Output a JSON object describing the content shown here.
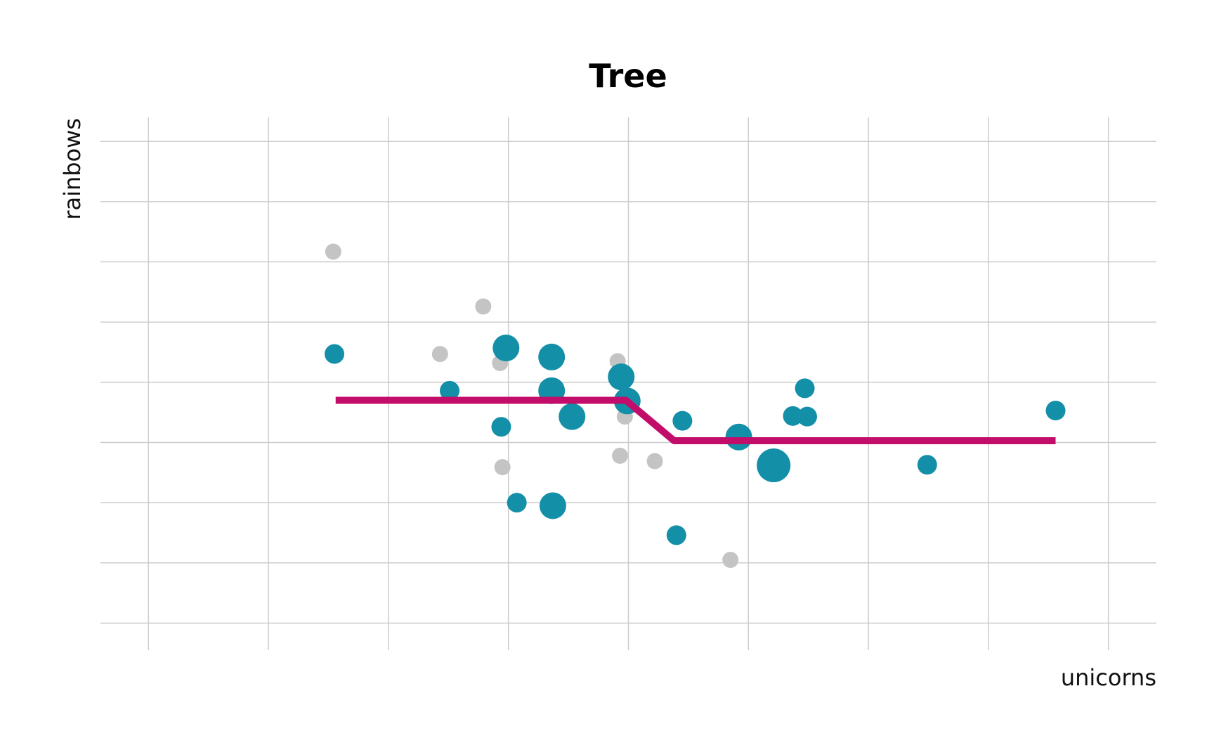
{
  "chart_data": {
    "type": "scatter",
    "title": "Tree",
    "xlabel": "unicorns",
    "ylabel": "rainbows",
    "xlim": [
      -0.4,
      8.4
    ],
    "ylim": [
      -0.45,
      8.4
    ],
    "grid": true,
    "x_gridlines": [
      0,
      1,
      2,
      3,
      4,
      5,
      6,
      7,
      8
    ],
    "y_gridlines": [
      0,
      1,
      2,
      3,
      4,
      5,
      6,
      7,
      8
    ],
    "colors": {
      "test_points": "#c4c4c4",
      "train_points": "#138fa8",
      "model_line": "#c20e6a",
      "grid": "#cccccc"
    },
    "series": [
      {
        "role": "test",
        "points": [
          {
            "x": 1.54,
            "y": 6.17
          },
          {
            "x": 2.79,
            "y": 5.26
          },
          {
            "x": 2.43,
            "y": 4.47
          },
          {
            "x": 2.93,
            "y": 4.32
          },
          {
            "x": 3.91,
            "y": 4.35
          },
          {
            "x": 3.97,
            "y": 3.43
          },
          {
            "x": 2.95,
            "y": 2.59
          },
          {
            "x": 3.93,
            "y": 2.78
          },
          {
            "x": 4.22,
            "y": 2.69
          },
          {
            "x": 4.85,
            "y": 1.05
          }
        ]
      },
      {
        "role": "train",
        "points": [
          {
            "x": 1.55,
            "y": 4.47,
            "w": 1
          },
          {
            "x": 2.51,
            "y": 3.86,
            "w": 1
          },
          {
            "x": 2.98,
            "y": 4.57,
            "w": 2
          },
          {
            "x": 3.36,
            "y": 4.42,
            "w": 2
          },
          {
            "x": 3.94,
            "y": 4.09,
            "w": 2
          },
          {
            "x": 3.36,
            "y": 3.86,
            "w": 2
          },
          {
            "x": 3.53,
            "y": 3.43,
            "w": 2
          },
          {
            "x": 3.99,
            "y": 3.69,
            "w": 2
          },
          {
            "x": 2.94,
            "y": 3.26,
            "w": 1
          },
          {
            "x": 4.45,
            "y": 3.36,
            "w": 1
          },
          {
            "x": 5.37,
            "y": 3.44,
            "w": 1
          },
          {
            "x": 5.49,
            "y": 3.43,
            "w": 1
          },
          {
            "x": 5.47,
            "y": 3.9,
            "w": 1
          },
          {
            "x": 4.92,
            "y": 3.09,
            "w": 2
          },
          {
            "x": 5.21,
            "y": 2.62,
            "w": 3
          },
          {
            "x": 6.49,
            "y": 2.63,
            "w": 1
          },
          {
            "x": 3.07,
            "y": 2.0,
            "w": 1
          },
          {
            "x": 3.37,
            "y": 1.95,
            "w": 2
          },
          {
            "x": 4.4,
            "y": 1.46,
            "w": 1
          },
          {
            "x": 7.56,
            "y": 3.53,
            "w": 1
          }
        ]
      }
    ],
    "model_line": {
      "x": [
        1.56,
        3.98,
        4.38,
        7.56
      ],
      "y": [
        3.7,
        3.7,
        3.03,
        3.03
      ]
    }
  }
}
